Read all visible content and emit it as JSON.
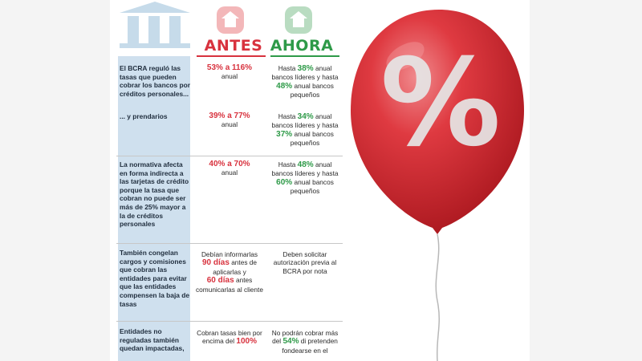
{
  "header": {
    "antes": "ANTES",
    "ahora": "AHORA",
    "bank_icon": "bank-icon",
    "antes_icon": "house-icon",
    "ahora_icon": "house-icon"
  },
  "rows": [
    {
      "label": "El BCRA reguló las tasas que pueden cobrar los bancos por créditos personales...",
      "antes": {
        "pre": "",
        "hl": "53% a 116%",
        "post": "anual"
      },
      "ahora": {
        "l1": "Hasta ",
        "h1": "38%",
        "m1": " anual bancos líderes y hasta ",
        "h2": "48%",
        "m2": " anual bancos pequeños"
      }
    },
    {
      "label": "... y prendarios",
      "antes": {
        "pre": "",
        "hl": "39% a 77%",
        "post": "anual"
      },
      "ahora": {
        "l1": "Hasta ",
        "h1": "34%",
        "m1": " anual bancos líderes y hasta ",
        "h2": "37%",
        "m2": " anual bancos pequeños"
      }
    },
    {
      "label": "La normativa afecta en forma indirecta a las tarjetas de crédito porque la tasa que cobran no puede ser más de 25% mayor a la de créditos personales",
      "antes": {
        "pre": "",
        "hl": "40% a 70%",
        "post": "anual"
      },
      "ahora": {
        "l1": "Hasta ",
        "h1": "48%",
        "m1": " anual bancos líderes y hasta ",
        "h2": "60%",
        "m2": " anual bancos pequeños"
      }
    },
    {
      "label": "También congelan cargos y comisiones que cobran las entidades para evitar que las entidades compensen la baja de tasas",
      "antes": {
        "t1": "Debían informarlas",
        "h1": "90 días",
        "t2": " antes de aplicarlas y",
        "h2": "60 días",
        "t3": " antes comunicarlas al cliente"
      },
      "ahora": {
        "text": "Deben solicitar autorización previa al BCRA por nota"
      }
    },
    {
      "label": "Entidades no reguladas también quedan impactadas,",
      "antes": {
        "t1": "Cobran tasas bien por encima del ",
        "h1": "100%"
      },
      "ahora": {
        "t1": "No podrán cobrar más del ",
        "h1": "54%",
        "t2": " di pretenden fondearse en el"
      }
    }
  ],
  "balloon": {
    "symbol": "%",
    "icon": "percent-balloon-icon",
    "colors": {
      "balloon": "#d62a32",
      "highlight": "#f07a7e",
      "string": "#b8b8b8"
    }
  },
  "colors": {
    "antes": "#d8323e",
    "ahora": "#2e9a48",
    "left_bg": "#cfe0ee"
  }
}
